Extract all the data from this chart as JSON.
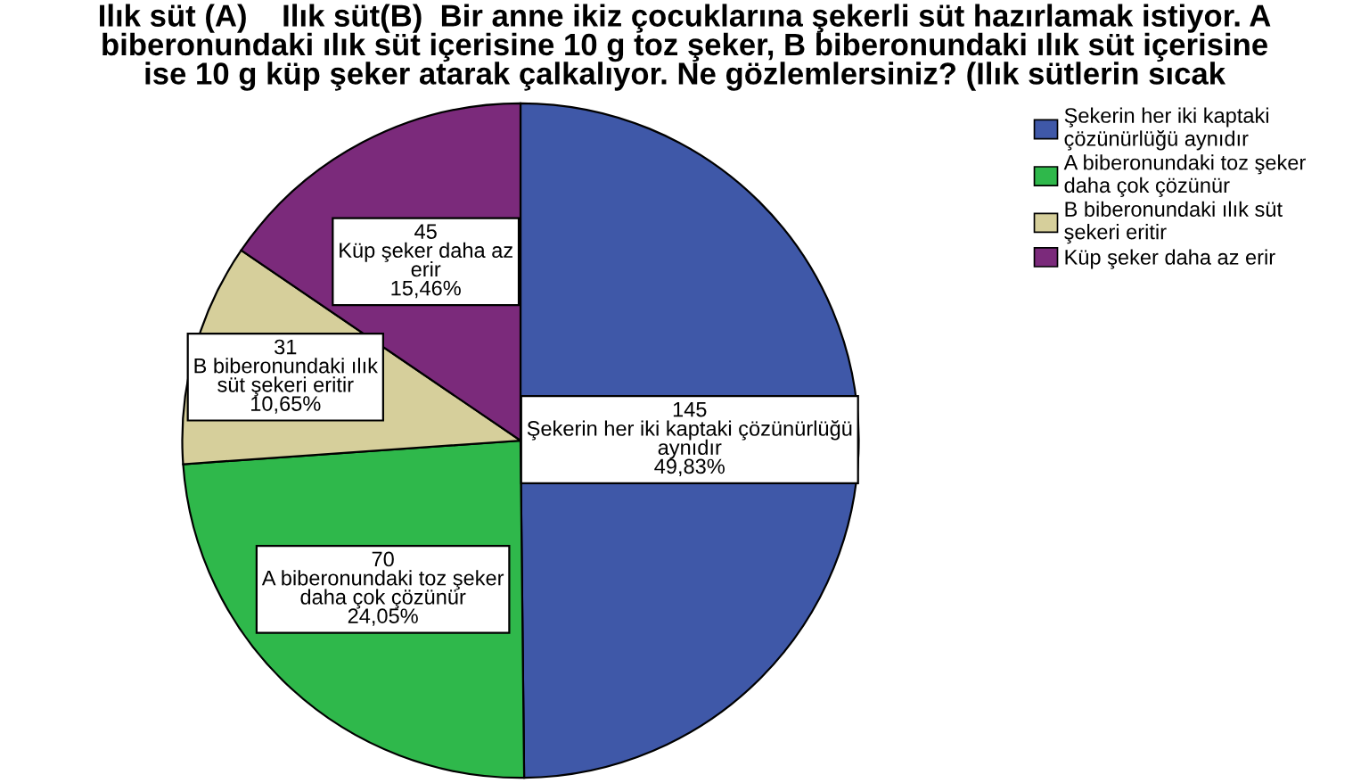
{
  "chart_data": {
    "type": "pie",
    "title": "Ilık süt (A)    Ilık süt(B)  Bir anne ikiz çocuklarına şekerli süt hazırlamak istiyor. A\nbiberonundaki ılık süt içerisine 10 g toz şeker, B biberonundaki ılık süt içerisine\nise 10 g küp şeker atarak çalkalıyor. Ne gözlemlersiniz? (Ilık sütlerin sıcak",
    "categories": [
      "Şekerin her iki kaptaki\nçözünürlüğü aynıdır",
      "A biberonundaki toz şeker\ndaha çok çözünür",
      "B biberonundaki ılık süt\nşekeri eritir",
      "Küp şeker daha az erir"
    ],
    "values": [
      145,
      70,
      31,
      45
    ],
    "colors": [
      "#3f58a8",
      "#2fb84b",
      "#d6cf9b",
      "#7b2a7b"
    ],
    "value_labels": [
      "145\nŞekerin her iki kaptaki çözünürlüğü\naynıdır\n49,83%",
      "70\nA biberonundaki toz şeker\ndaha çok çözünür\n24,05%",
      "31\nB biberonundaki ılık\nsüt şekeri eritir\n10,65%",
      "45\nKüp şeker daha az\nerir\n15,46%"
    ],
    "legend": "top right"
  }
}
